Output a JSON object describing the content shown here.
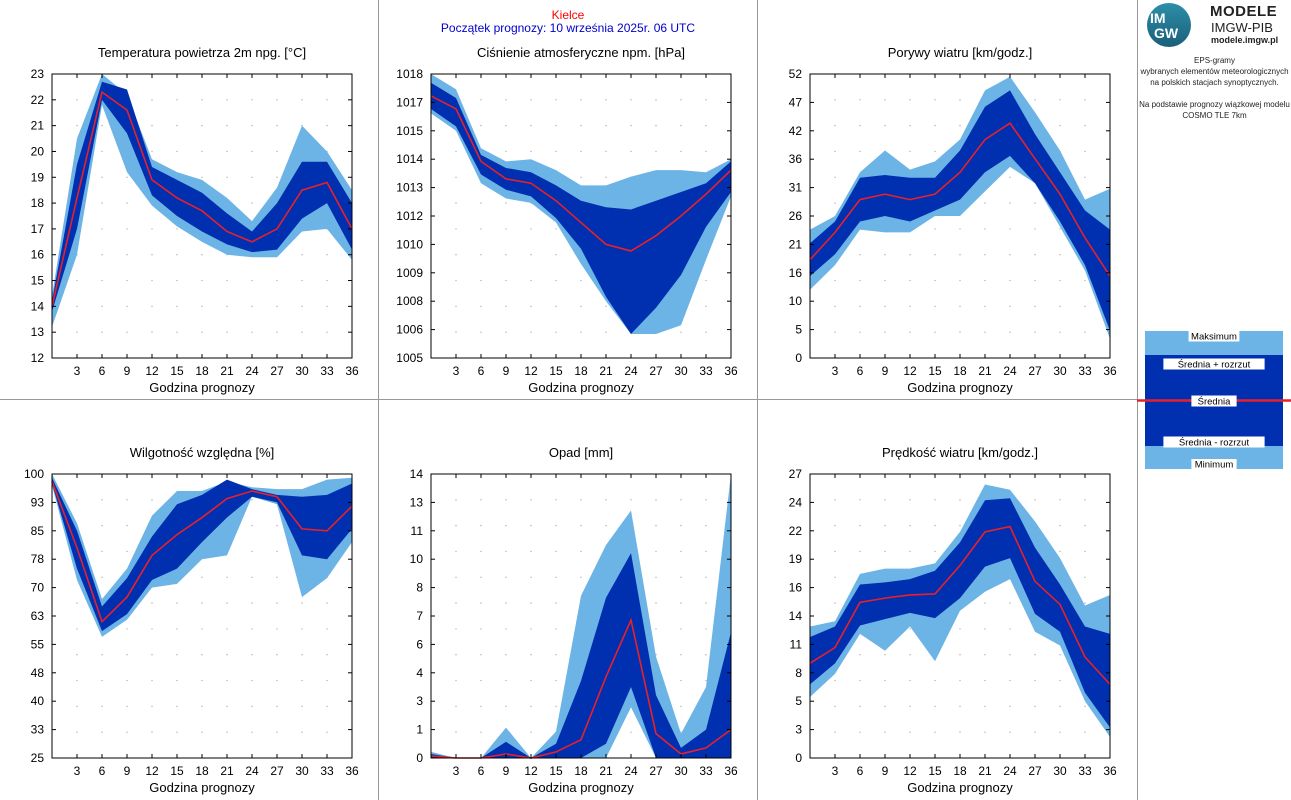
{
  "header": {
    "place": "Kielce",
    "forecast_start": "Początek prognozy: 10 września 2025r. 06 UTC"
  },
  "brand": {
    "logo_top": "IM",
    "logo_bottom": "GW",
    "name1": "MODELE",
    "name2": "IMGW-PIB",
    "url": "modele.imgw.pl"
  },
  "description": {
    "lines1": [
      "EPS-gramy",
      "wybranych elementów meteorologicznych",
      "na polskich stacjach  synoptycznych."
    ],
    "lines2": [
      "Na podstawie prognozy wiązkowej modelu",
      "COSMO TLE 7km"
    ]
  },
  "legend": {
    "items": [
      "Maksimum",
      "Średnia + rozrzut",
      "Średnia",
      "Średnia - rozrzut",
      "Minimum"
    ]
  },
  "colors": {
    "outer_band": "#6cb4e6",
    "inner_band": "#0030b0",
    "mean_line": "#e8202a",
    "place_text": "#ff0000",
    "start_text": "#0000cc"
  },
  "chart_data": [
    {
      "type": "area",
      "title": "Temperatura powietrza 2m npg. [°C]",
      "xlabel": "Godzina prognozy",
      "x": [
        0,
        3,
        6,
        9,
        12,
        15,
        18,
        21,
        24,
        27,
        30,
        33,
        36
      ],
      "xticks": [
        3,
        6,
        9,
        12,
        15,
        18,
        21,
        24,
        27,
        30,
        33,
        36
      ],
      "ylim": [
        12,
        23
      ],
      "yticks": [
        "12",
        "13",
        "14",
        "15",
        "16",
        "17",
        "18",
        "19",
        "20",
        "21",
        "22",
        "23"
      ],
      "series": [
        {
          "name": "Maksimum",
          "values": [
            14.4,
            20.5,
            23.0,
            22.2,
            19.7,
            19.2,
            18.9,
            18.2,
            17.3,
            18.6,
            21.0,
            20.0,
            18.5
          ]
        },
        {
          "name": "Średnia + rozrzut",
          "values": [
            14.2,
            19.5,
            22.7,
            22.4,
            19.4,
            18.9,
            18.4,
            17.6,
            16.9,
            18.0,
            19.6,
            19.6,
            18.0
          ]
        },
        {
          "name": "Średnia",
          "values": [
            14.0,
            18.2,
            22.3,
            21.6,
            18.9,
            18.2,
            17.7,
            16.9,
            16.5,
            17.0,
            18.5,
            18.8,
            17.0
          ]
        },
        {
          "name": "Średnia - rozrzut",
          "values": [
            13.8,
            17.0,
            22.0,
            20.7,
            18.3,
            17.5,
            16.9,
            16.4,
            16.1,
            16.2,
            17.4,
            18.0,
            16.2
          ]
        },
        {
          "name": "Minimum",
          "values": [
            13.2,
            16.0,
            21.8,
            19.2,
            17.9,
            17.1,
            16.5,
            16.0,
            15.9,
            15.9,
            16.9,
            17.0,
            15.8
          ]
        }
      ]
    },
    {
      "type": "area",
      "title": "Ciśnienie atmosferyczne npm. [hPa]",
      "xlabel": "Godzina prognozy",
      "x": [
        0,
        3,
        6,
        9,
        12,
        15,
        18,
        21,
        24,
        27,
        30,
        33,
        36
      ],
      "xticks": [
        3,
        6,
        9,
        12,
        15,
        18,
        21,
        24,
        27,
        30,
        33,
        36
      ],
      "ylim": [
        1005,
        1018
      ],
      "yticks": [
        "1005",
        "1006",
        "1008",
        "1009",
        "1010",
        "1012",
        "1013",
        "1014",
        "1015",
        "1017",
        "1018"
      ],
      "series": [
        {
          "name": "Maksimum",
          "values": [
            1018.0,
            1017.3,
            1014.6,
            1014.0,
            1014.1,
            1013.6,
            1012.9,
            1012.9,
            1013.3,
            1013.6,
            1013.6,
            1013.5,
            1014.1
          ]
        },
        {
          "name": "Średnia + rozrzut",
          "values": [
            1017.6,
            1016.9,
            1014.3,
            1013.7,
            1013.5,
            1012.9,
            1012.2,
            1011.9,
            1011.8,
            1012.2,
            1012.6,
            1013.0,
            1014.0
          ]
        },
        {
          "name": "Średnia",
          "values": [
            1017.0,
            1016.4,
            1014.0,
            1013.2,
            1013.0,
            1012.2,
            1011.2,
            1010.2,
            1009.9,
            1010.6,
            1011.5,
            1012.5,
            1013.6
          ]
        },
        {
          "name": "Średnia - rozrzut",
          "values": [
            1016.4,
            1015.6,
            1013.4,
            1012.7,
            1012.4,
            1011.4,
            1010.0,
            1007.8,
            1006.1,
            1007.3,
            1008.8,
            1011.0,
            1012.6
          ]
        },
        {
          "name": "Minimum",
          "values": [
            1016.2,
            1015.4,
            1013.0,
            1012.3,
            1012.1,
            1011.2,
            1009.3,
            1007.6,
            1006.1,
            1006.1,
            1006.5,
            1009.5,
            1012.4
          ]
        }
      ]
    },
    {
      "type": "area",
      "title": "Porywy wiatru [km/godz.]",
      "xlabel": "Godzina prognozy",
      "x": [
        0,
        3,
        6,
        9,
        12,
        15,
        18,
        21,
        24,
        27,
        30,
        33,
        36
      ],
      "xticks": [
        3,
        6,
        9,
        12,
        15,
        18,
        21,
        24,
        27,
        30,
        33,
        36
      ],
      "ylim": [
        0,
        52
      ],
      "yticks": [
        "0",
        "5",
        "10",
        "16",
        "21",
        "26",
        "31",
        "36",
        "42",
        "47",
        "52"
      ],
      "series": [
        {
          "name": "Maksimum",
          "values": [
            23.5,
            26.0,
            34.0,
            38.0,
            34.5,
            36.0,
            40.0,
            49.0,
            51.5,
            45.0,
            38.0,
            29.0,
            31.0
          ]
        },
        {
          "name": "Średnia + rozrzut",
          "values": [
            21.0,
            25.0,
            33.0,
            33.5,
            33.0,
            33.0,
            38.0,
            46.0,
            49.0,
            41.0,
            34.0,
            27.0,
            23.5
          ]
        },
        {
          "name": "Średnia",
          "values": [
            18.0,
            23.0,
            29.0,
            30.0,
            29.0,
            30.0,
            34.0,
            40.0,
            43.0,
            36.5,
            30.0,
            22.0,
            15.0
          ]
        },
        {
          "name": "Średnia - rozrzut",
          "values": [
            15.0,
            19.0,
            25.0,
            26.0,
            25.0,
            27.0,
            29.0,
            34.0,
            37.0,
            32.0,
            25.0,
            17.0,
            5.0
          ]
        },
        {
          "name": "Minimum",
          "values": [
            12.5,
            17.0,
            23.5,
            23.0,
            23.0,
            26.0,
            26.0,
            30.5,
            35.0,
            32.0,
            24.0,
            16.0,
            3.5
          ]
        }
      ]
    },
    {
      "type": "area",
      "title": "Wilgotność względna [%]",
      "xlabel": "Godzina prognozy",
      "x": [
        0,
        3,
        6,
        9,
        12,
        15,
        18,
        21,
        24,
        27,
        30,
        33,
        36
      ],
      "xticks": [
        3,
        6,
        9,
        12,
        15,
        18,
        21,
        24,
        27,
        30,
        33,
        36
      ],
      "ylim": [
        25,
        100
      ],
      "yticks": [
        "25",
        "33",
        "40",
        "48",
        "55",
        "63",
        "70",
        "78",
        "85",
        "93",
        "100"
      ],
      "series": [
        {
          "name": "Maksimum",
          "values": [
            100.0,
            87.0,
            67.0,
            75.0,
            89.0,
            95.5,
            95.5,
            98.0,
            96.5,
            96.0,
            96.0,
            98.5,
            99.0
          ]
        },
        {
          "name": "Średnia + rozrzut",
          "values": [
            99.0,
            85.0,
            65.0,
            72.5,
            83.5,
            92.0,
            94.5,
            98.5,
            96.0,
            94.5,
            94.0,
            94.5,
            97.5
          ]
        },
        {
          "name": "Średnia",
          "values": [
            98.0,
            80.5,
            61.0,
            67.5,
            78.5,
            84.0,
            88.5,
            93.5,
            95.5,
            94.0,
            85.5,
            85.0,
            91.5
          ]
        },
        {
          "name": "Średnia - rozrzut",
          "values": [
            97.5,
            75.0,
            58.5,
            63.0,
            72.0,
            75.0,
            82.0,
            88.5,
            94.0,
            92.5,
            78.5,
            77.5,
            85.5
          ]
        },
        {
          "name": "Minimum",
          "values": [
            97.0,
            72.0,
            57.0,
            61.5,
            70.0,
            71.0,
            77.5,
            78.5,
            94.0,
            92.0,
            67.5,
            72.5,
            82.0
          ]
        }
      ]
    },
    {
      "type": "area",
      "title": "Opad [mm]",
      "xlabel": "Godzina prognozy",
      "x": [
        0,
        3,
        6,
        9,
        12,
        15,
        18,
        21,
        24,
        27,
        30,
        33,
        36
      ],
      "xticks": [
        3,
        6,
        9,
        12,
        15,
        18,
        21,
        24,
        27,
        30,
        33,
        36
      ],
      "ylim": [
        0,
        14
      ],
      "yticks": [
        "0",
        "1",
        "3",
        "4",
        "6",
        "7",
        "8",
        "10",
        "11",
        "13",
        "14"
      ],
      "series": [
        {
          "name": "Maksimum",
          "values": [
            0.3,
            0.0,
            0.0,
            1.5,
            0.0,
            1.3,
            8.0,
            10.5,
            12.2,
            5.0,
            1.2,
            3.5,
            14.0
          ]
        },
        {
          "name": "Średnia + rozrzut",
          "values": [
            0.2,
            0.0,
            0.0,
            0.8,
            0.0,
            0.7,
            3.8,
            7.9,
            10.1,
            3.1,
            0.5,
            1.4,
            6.2
          ]
        },
        {
          "name": "Średnia",
          "values": [
            0.1,
            0.0,
            0.0,
            0.2,
            0.0,
            0.3,
            0.9,
            4.0,
            6.8,
            1.2,
            0.2,
            0.5,
            1.4
          ]
        },
        {
          "name": "Średnia - rozrzut",
          "values": [
            0.0,
            0.0,
            0.0,
            0.0,
            0.0,
            0.0,
            0.0,
            0.7,
            3.5,
            0.0,
            0.0,
            0.0,
            0.0
          ]
        },
        {
          "name": "Minimum",
          "values": [
            0.0,
            0.0,
            0.0,
            0.0,
            0.0,
            0.0,
            0.0,
            0.0,
            2.5,
            0.0,
            0.0,
            0.0,
            0.0
          ]
        }
      ]
    },
    {
      "type": "area",
      "title": "Prędkość wiatru [km/godz.]",
      "xlabel": "Godzina prognozy",
      "x": [
        0,
        3,
        6,
        9,
        12,
        15,
        18,
        21,
        24,
        27,
        30,
        33,
        36
      ],
      "xticks": [
        3,
        6,
        9,
        12,
        15,
        18,
        21,
        24,
        27,
        30,
        33,
        36
      ],
      "ylim": [
        0,
        27
      ],
      "yticks": [
        "0",
        "3",
        "5",
        "8",
        "11",
        "14",
        "16",
        "19",
        "22",
        "24",
        "27"
      ],
      "series": [
        {
          "name": "Maksimum",
          "values": [
            12.5,
            13.0,
            17.5,
            18.0,
            18.0,
            18.5,
            21.5,
            26.0,
            25.5,
            22.5,
            19.0,
            14.5,
            15.5
          ]
        },
        {
          "name": "Średnia + rozrzut",
          "values": [
            11.5,
            12.5,
            16.5,
            16.7,
            17.0,
            17.8,
            20.5,
            24.5,
            24.7,
            20.0,
            16.5,
            12.5,
            11.8
          ]
        },
        {
          "name": "Średnia",
          "values": [
            9.0,
            10.5,
            14.8,
            15.2,
            15.5,
            15.6,
            18.3,
            21.5,
            22.0,
            16.8,
            14.6,
            9.6,
            7.0
          ]
        },
        {
          "name": "Średnia - rozrzut",
          "values": [
            7.0,
            9.0,
            12.6,
            13.2,
            13.8,
            13.3,
            15.2,
            18.2,
            19.0,
            13.7,
            12.0,
            6.2,
            2.9
          ]
        },
        {
          "name": "Minimum",
          "values": [
            5.8,
            8.0,
            11.8,
            10.2,
            12.5,
            9.2,
            14.0,
            15.8,
            17.0,
            12.0,
            10.7,
            5.4,
            2.0
          ]
        }
      ]
    }
  ]
}
